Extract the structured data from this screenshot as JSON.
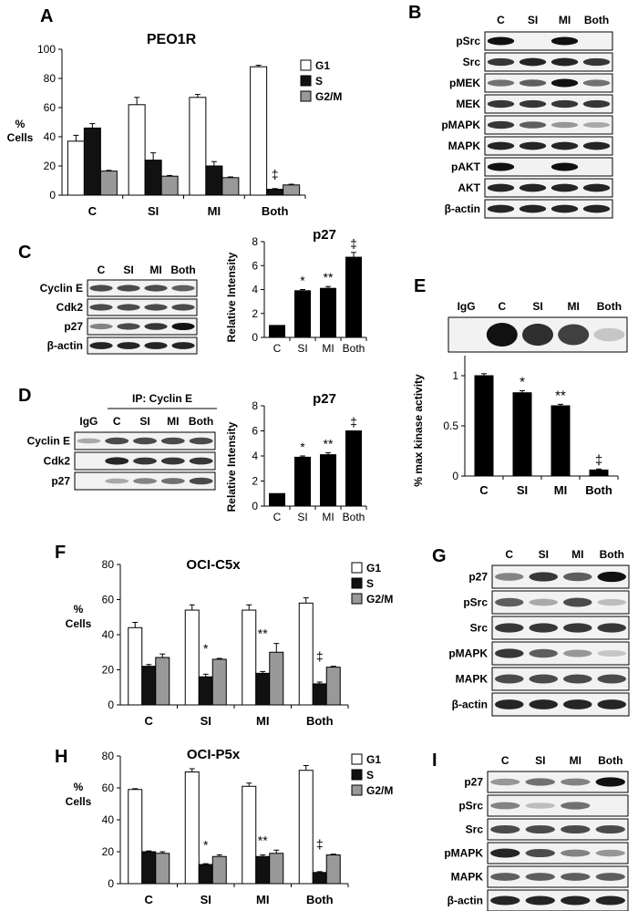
{
  "panel_letters": {
    "A": "A",
    "B": "B",
    "C": "C",
    "D": "D",
    "E": "E",
    "F": "F",
    "G": "G",
    "H": "H",
    "I": "I"
  },
  "y_unit_1": "%",
  "y_unit_2": "Cells",
  "rel_intensity": "Relative Intensity",
  "conditions": [
    "C",
    "SI",
    "MI",
    "Both"
  ],
  "legend": [
    "G1",
    "S",
    "G2/M"
  ],
  "colors": {
    "G1": "#ffffff",
    "S": "#111111",
    "G2M": "#999999",
    "bar": "#000000",
    "blot_bg": "#f2f2f2"
  },
  "blots": {
    "B": [
      "pSrc",
      "Src",
      "pMEK",
      "MEK",
      "pMAPK",
      "MAPK",
      "pAKT",
      "AKT",
      "β-actin"
    ],
    "C": [
      "Cyclin E",
      "Cdk2",
      "p27",
      "β-actin"
    ],
    "D": [
      "Cyclin E",
      "Cdk2",
      "p27"
    ],
    "D_ip": "IP: Cyclin E",
    "D_lanes": [
      "IgG",
      "C",
      "SI",
      "MI",
      "Both"
    ],
    "E_lanes": [
      "IgG",
      "C",
      "SI",
      "MI",
      "Both"
    ],
    "G": [
      "p27",
      "pSrc",
      "Src",
      "pMAPK",
      "MAPK",
      "β-actin"
    ],
    "I": [
      "p27",
      "pSrc",
      "Src",
      "pMAPK",
      "MAPK",
      "β-actin"
    ]
  },
  "chart_data": [
    {
      "panel": "A",
      "type": "bar",
      "title": "PEO1R",
      "ylabel": "% Cells",
      "categories": [
        "C",
        "SI",
        "MI",
        "Both"
      ],
      "ylim": [
        0,
        100
      ],
      "yticks": [
        0,
        20,
        40,
        60,
        80,
        100
      ],
      "legend_position": "top-right",
      "series": [
        {
          "name": "G1",
          "values": [
            37,
            62,
            67,
            88
          ],
          "errors": [
            4,
            5,
            2,
            1
          ]
        },
        {
          "name": "S",
          "values": [
            46,
            24,
            20,
            4
          ],
          "errors": [
            3,
            5,
            3,
            0.5
          ]
        },
        {
          "name": "G2/M",
          "values": [
            16.5,
            13,
            12,
            7
          ],
          "errors": [
            0.5,
            0.5,
            0.5,
            0.5
          ]
        }
      ],
      "annotations": [
        {
          "category": "Both",
          "series": "S",
          "text": "‡"
        }
      ]
    },
    {
      "panel": "C",
      "type": "bar",
      "title": "p27",
      "ylabel": "Relative Intensity",
      "categories": [
        "C",
        "SI",
        "MI",
        "Both"
      ],
      "ylim": [
        0,
        8
      ],
      "yticks": [
        0,
        2,
        4,
        6,
        8
      ],
      "series": [
        {
          "values": [
            1,
            3.9,
            4.1,
            6.7
          ],
          "errors": [
            0,
            0.1,
            0.15,
            0.4
          ]
        }
      ],
      "annotations": [
        {
          "category": "SI",
          "text": "*"
        },
        {
          "category": "MI",
          "text": "**"
        },
        {
          "category": "Both",
          "text": "‡"
        }
      ]
    },
    {
      "panel": "D",
      "type": "bar",
      "title": "p27",
      "ylabel": "Relative Intensity",
      "categories": [
        "C",
        "SI",
        "MI",
        "Both"
      ],
      "ylim": [
        0,
        8
      ],
      "yticks": [
        0,
        2,
        4,
        6,
        8
      ],
      "series": [
        {
          "values": [
            1,
            3.9,
            4.1,
            6
          ],
          "errors": [
            0,
            0.1,
            0.15,
            0
          ]
        }
      ],
      "annotations": [
        {
          "category": "SI",
          "text": "*"
        },
        {
          "category": "MI",
          "text": "**"
        },
        {
          "category": "Both",
          "text": "‡"
        }
      ]
    },
    {
      "panel": "E",
      "type": "bar",
      "ylabel": "% max kinase activity",
      "categories": [
        "C",
        "SI",
        "MI",
        "Both"
      ],
      "ylim": [
        0,
        1.2
      ],
      "yticks": [
        0,
        0.5,
        1
      ],
      "series": [
        {
          "values": [
            1,
            0.83,
            0.7,
            0.06
          ],
          "errors": [
            0.02,
            0.02,
            0.015,
            0.01
          ]
        }
      ],
      "annotations": [
        {
          "category": "SI",
          "text": "*"
        },
        {
          "category": "MI",
          "text": "**"
        },
        {
          "category": "Both",
          "text": "‡"
        }
      ]
    },
    {
      "panel": "F",
      "type": "bar",
      "title": "OCI-C5x",
      "ylabel": "% Cells",
      "categories": [
        "C",
        "SI",
        "MI",
        "Both"
      ],
      "ylim": [
        0,
        80
      ],
      "yticks": [
        0,
        20,
        40,
        60,
        80
      ],
      "legend_position": "top-right",
      "series": [
        {
          "name": "G1",
          "values": [
            44,
            54,
            54,
            58
          ],
          "errors": [
            3,
            3,
            3,
            3
          ]
        },
        {
          "name": "S",
          "values": [
            22,
            16,
            18,
            12
          ],
          "errors": [
            1,
            1.5,
            1,
            1
          ]
        },
        {
          "name": "G2/M",
          "values": [
            27,
            26,
            30,
            21.5
          ],
          "errors": [
            2,
            0.5,
            5,
            0.5
          ]
        }
      ],
      "annotations": [
        {
          "category": "SI",
          "series": "S",
          "text": "*"
        },
        {
          "category": "MI",
          "series": "S",
          "text": "**"
        },
        {
          "category": "Both",
          "series": "S",
          "text": "‡"
        }
      ]
    },
    {
      "panel": "H",
      "type": "bar",
      "title": "OCI-P5x",
      "ylabel": "% Cells",
      "categories": [
        "C",
        "SI",
        "MI",
        "Both"
      ],
      "ylim": [
        0,
        80
      ],
      "yticks": [
        0,
        20,
        40,
        60,
        80
      ],
      "legend_position": "top-right",
      "series": [
        {
          "name": "G1",
          "values": [
            59,
            70,
            61,
            71
          ],
          "errors": [
            0.5,
            2,
            2,
            3
          ]
        },
        {
          "name": "S",
          "values": [
            20,
            12,
            17,
            7
          ],
          "errors": [
            0.5,
            0.5,
            1,
            0.5
          ]
        },
        {
          "name": "G2/M",
          "values": [
            19,
            17,
            19,
            18
          ],
          "errors": [
            1,
            1,
            2,
            0.5
          ]
        }
      ],
      "annotations": [
        {
          "category": "SI",
          "series": "S",
          "text": "*"
        },
        {
          "category": "MI",
          "series": "S",
          "text": "**"
        },
        {
          "category": "Both",
          "series": "S",
          "text": "‡"
        }
      ]
    }
  ]
}
